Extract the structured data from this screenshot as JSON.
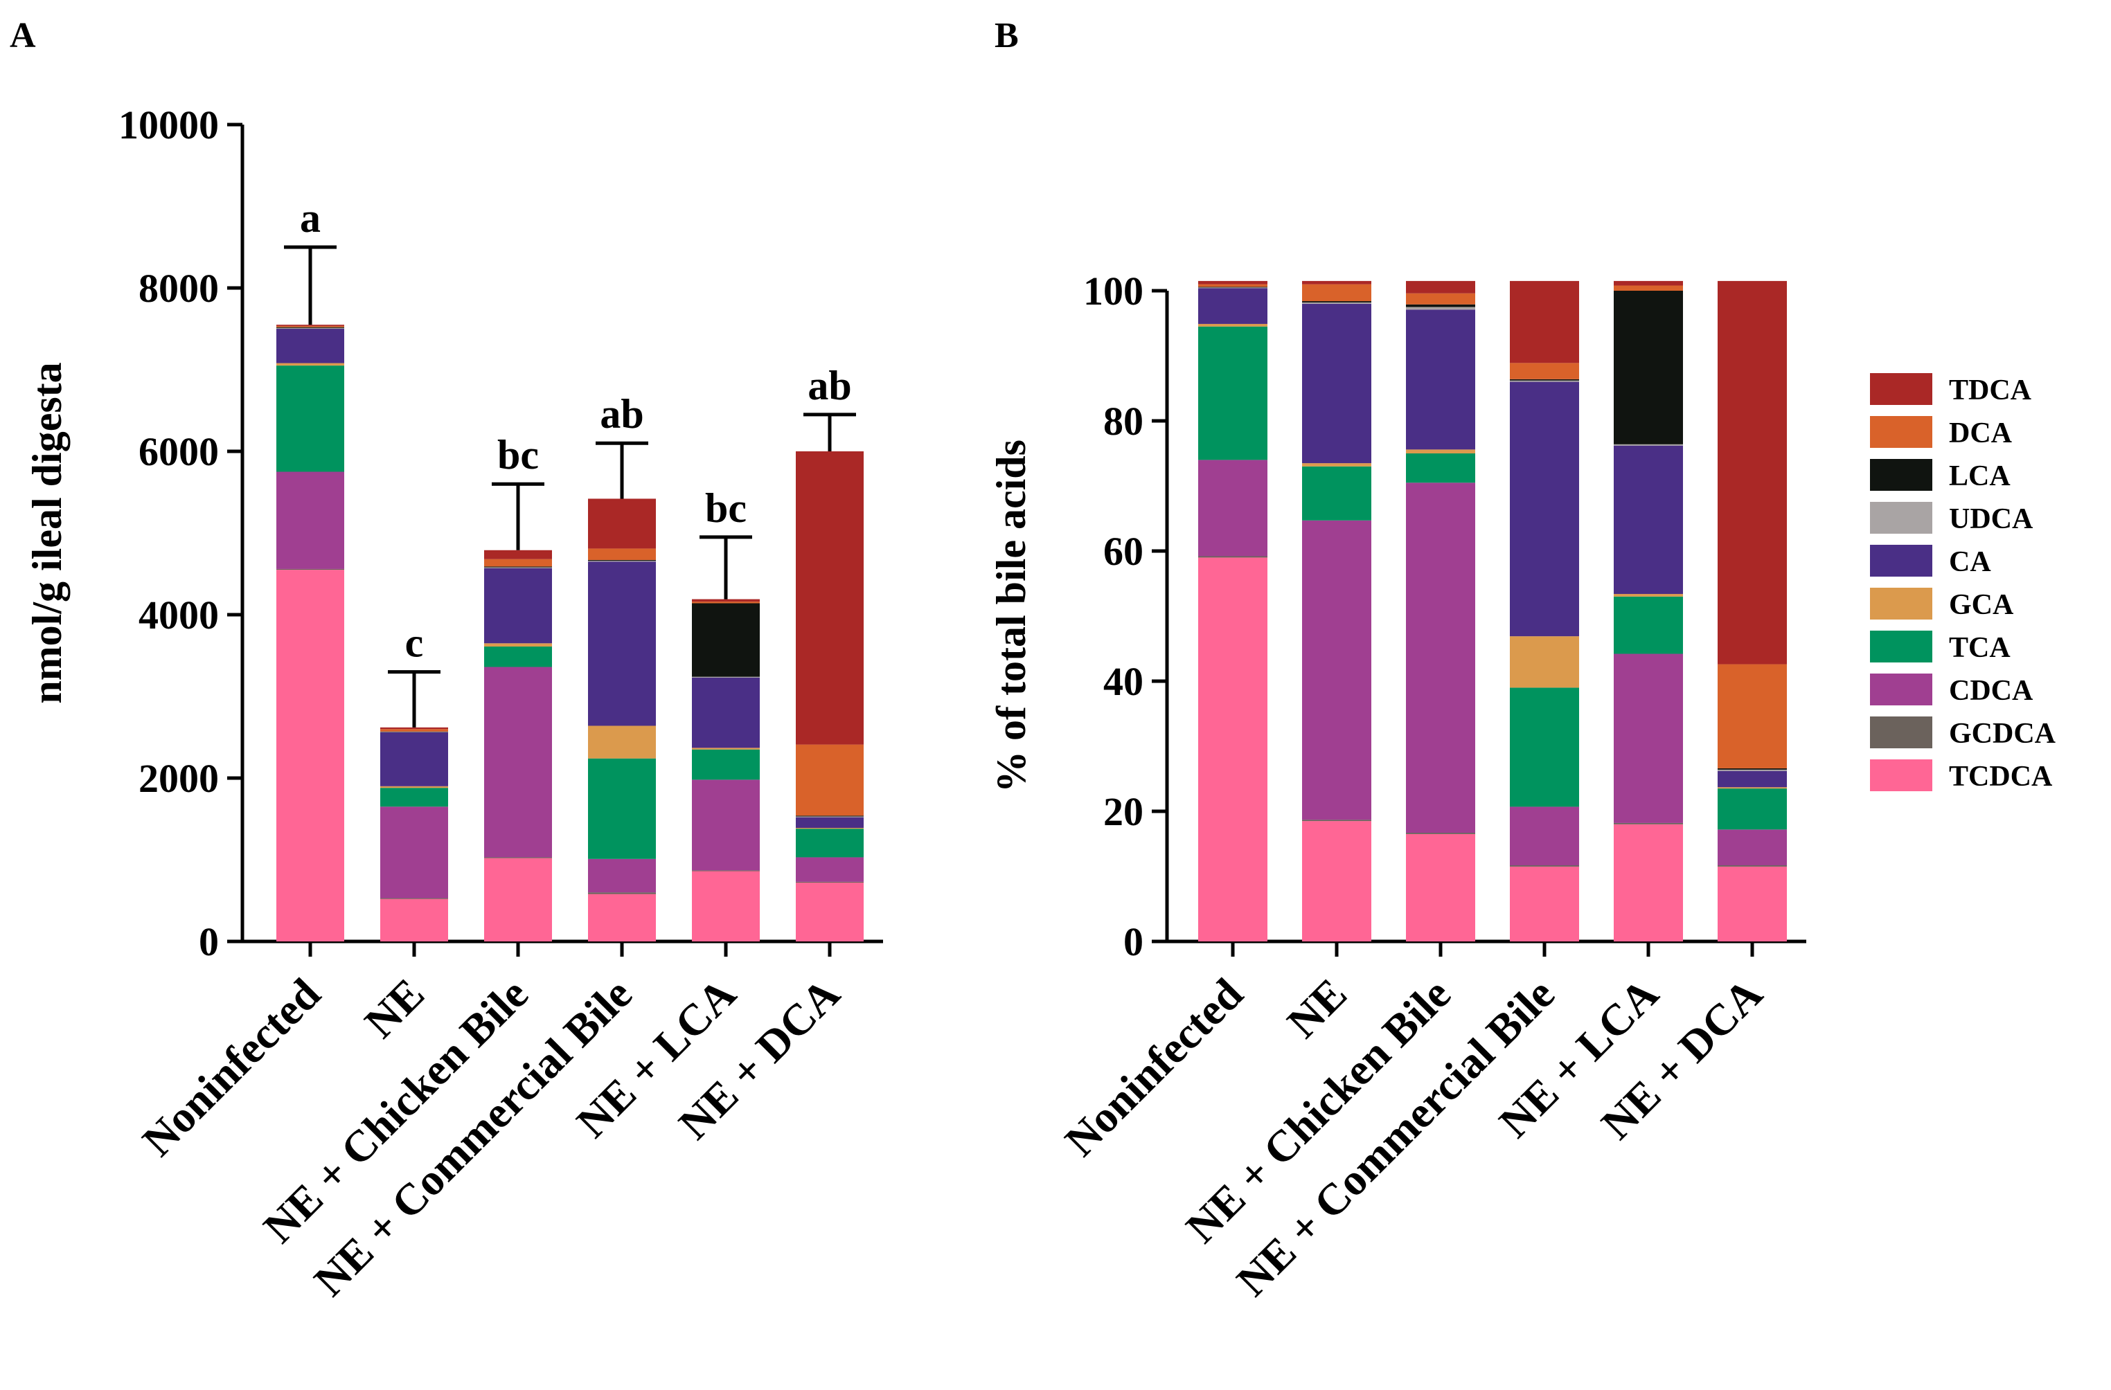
{
  "chart_data": [
    {
      "panel": "A",
      "type": "bar",
      "stacked": true,
      "ylabel": "nmol/g ileal digesta",
      "ylim": [
        0,
        10000
      ],
      "yticks": [
        0,
        2000,
        4000,
        6000,
        8000,
        10000
      ],
      "categories": [
        "Noninfected",
        "NE",
        "NE + Chicken Bile",
        "NE + Commercial Bile",
        "NE + LCA",
        "NE + DCA"
      ],
      "series": [
        {
          "name": "TCDCA",
          "color": "#ff6695",
          "values": [
            4550,
            520,
            1020,
            580,
            860,
            720
          ]
        },
        {
          "name": "GCDCA",
          "color": "#6b625c",
          "values": [
            10,
            10,
            10,
            20,
            10,
            10
          ]
        },
        {
          "name": "CDCA",
          "color": "#a03f91",
          "values": [
            1190,
            1120,
            2330,
            410,
            1110,
            300
          ]
        },
        {
          "name": "TCA",
          "color": "#00935e",
          "values": [
            1300,
            230,
            250,
            1230,
            370,
            350
          ]
        },
        {
          "name": "GCA",
          "color": "#db9a4d",
          "values": [
            30,
            20,
            40,
            400,
            20,
            10
          ]
        },
        {
          "name": "CA",
          "color": "#4a2f86",
          "values": [
            420,
            660,
            920,
            2010,
            860,
            130
          ]
        },
        {
          "name": "UDCA",
          "color": "#a9a4a4",
          "values": [
            10,
            5,
            10,
            10,
            10,
            10
          ]
        },
        {
          "name": "LCA",
          "color": "#101410",
          "values": [
            10,
            5,
            10,
            10,
            900,
            10
          ]
        },
        {
          "name": "DCA",
          "color": "#d9622a",
          "values": [
            15,
            30,
            90,
            140,
            20,
            870
          ]
        },
        {
          "name": "TDCA",
          "color": "#aa2826",
          "values": [
            15,
            20,
            110,
            610,
            30,
            3590
          ]
        }
      ],
      "totals": [
        7550,
        2620,
        4790,
        5420,
        4190,
        6000
      ],
      "error_upper": [
        8500,
        3300,
        5600,
        6100,
        4950,
        6450
      ],
      "significance": [
        "a",
        "c",
        "bc",
        "ab",
        "bc",
        "ab"
      ]
    },
    {
      "panel": "B",
      "type": "bar",
      "stacked": true,
      "ylabel": "% of total bile acids",
      "ylim": [
        0,
        100
      ],
      "yticks": [
        0,
        20,
        40,
        60,
        80,
        100
      ],
      "categories": [
        "Noninfected",
        "NE",
        "NE + Chicken Bile",
        "NE + Commercial Bile",
        "NE + LCA",
        "NE + DCA"
      ],
      "series": [
        {
          "name": "TCDCA",
          "color": "#ff6695",
          "values": [
            59,
            18.5,
            16.5,
            11.5,
            18,
            11.5
          ]
        },
        {
          "name": "GCDCA",
          "color": "#6b625c",
          "values": [
            0.2,
            0.2,
            0.2,
            0.2,
            0.2,
            0.2
          ]
        },
        {
          "name": "CDCA",
          "color": "#a03f91",
          "values": [
            14.8,
            46,
            53.8,
            9,
            26,
            5.5
          ]
        },
        {
          "name": "TCA",
          "color": "#00935e",
          "values": [
            20.5,
            8.3,
            4.5,
            18.3,
            8.8,
            6.3
          ]
        },
        {
          "name": "GCA",
          "color": "#db9a4d",
          "values": [
            0.4,
            0.5,
            0.6,
            7.9,
            0.4,
            0.2
          ]
        },
        {
          "name": "CA",
          "color": "#4a2f86",
          "values": [
            5.5,
            24.5,
            21.5,
            39.1,
            22.8,
            2.5
          ]
        },
        {
          "name": "UDCA",
          "color": "#a9a4a4",
          "values": [
            0.1,
            0.2,
            0.4,
            0.2,
            0.2,
            0.2
          ]
        },
        {
          "name": "LCA",
          "color": "#101410",
          "values": [
            0.1,
            0.2,
            0.4,
            0.2,
            23.6,
            0.2
          ]
        },
        {
          "name": "DCA",
          "color": "#d9622a",
          "values": [
            0.4,
            2.6,
            1.7,
            2.5,
            0.8,
            16
          ]
        },
        {
          "name": "TDCA",
          "color": "#aa2826",
          "values": [
            0.5,
            0.5,
            1.9,
            12.6,
            0.7,
            58.9
          ]
        }
      ],
      "legend_position": "right"
    }
  ],
  "legend": {
    "items": [
      {
        "name": "TDCA",
        "color": "#aa2826"
      },
      {
        "name": "DCA",
        "color": "#d9622a"
      },
      {
        "name": "LCA",
        "color": "#101410"
      },
      {
        "name": "UDCA",
        "color": "#a9a4a4"
      },
      {
        "name": "CA",
        "color": "#4a2f86"
      },
      {
        "name": "GCA",
        "color": "#db9a4d"
      },
      {
        "name": "TCA",
        "color": "#00935e"
      },
      {
        "name": "CDCA",
        "color": "#a03f91"
      },
      {
        "name": "GCDCA",
        "color": "#6b625c"
      },
      {
        "name": "TCDCA",
        "color": "#ff6695"
      }
    ]
  }
}
